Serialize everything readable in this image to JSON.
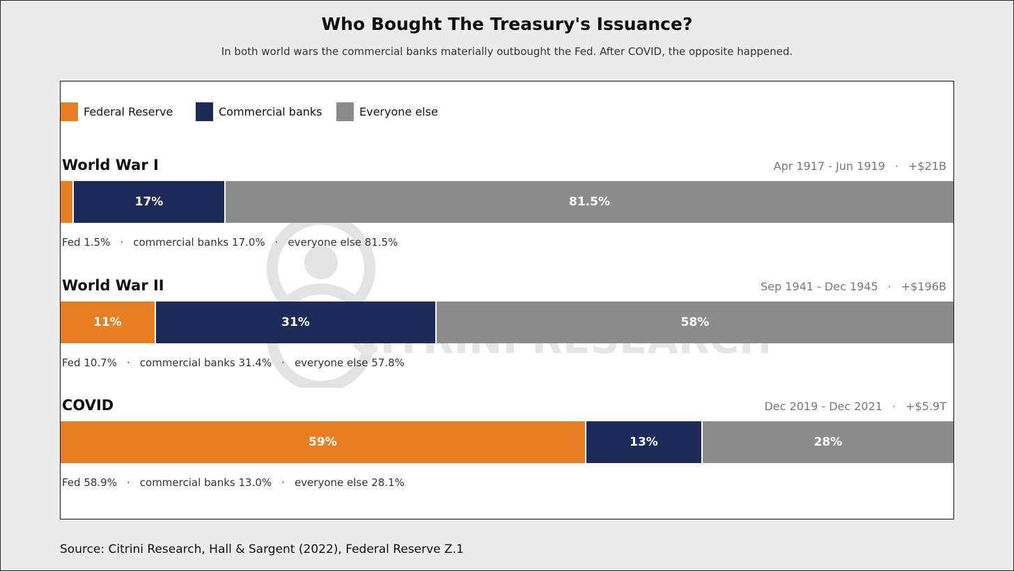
{
  "title": "Who Bought The Treasury's Issuance?",
  "subtitle": "In both world wars the commercial banks materially outbought the Fed. After COVID, the opposite happened.",
  "source": "Source: Citrini Research, Hall & Sargent (2022), Federal Reserve Z.1",
  "watermark": {
    "text": "CITRINI RESEARCH",
    "color": "#e0e0e0"
  },
  "colors": {
    "fed": "#e67e22",
    "banks": "#1c2b57",
    "others": "#8c8c8c"
  },
  "legend": [
    {
      "label": "Federal Reserve",
      "color": "#e67e22"
    },
    {
      "label": "Commercial banks",
      "color": "#1c2b57"
    },
    {
      "label": "Everyone else",
      "color": "#8c8c8c"
    }
  ],
  "sections": [
    {
      "title": "World War I",
      "period": "Apr 1917 - Jun 1919",
      "total": "+$21B",
      "sep": "·",
      "detail": [
        "Fed 1.5%",
        "commercial banks 17.0%",
        "everyone else 81.5%"
      ]
    },
    {
      "title": "World War II",
      "period": "Sep 1941 - Dec 1945",
      "total": "+$196B",
      "sep": "·",
      "detail": [
        "Fed 10.7%",
        "commercial banks 31.4%",
        "everyone else 57.8%"
      ]
    },
    {
      "title": "COVID",
      "period": "Dec 2019 - Dec 2021",
      "total": "+$5.9T",
      "sep": "·",
      "detail": [
        "Fed 58.9%",
        "commercial banks 13.0%",
        "everyone else 28.1%"
      ]
    }
  ],
  "chart_data": {
    "type": "bar",
    "stacked": true,
    "orientation": "horizontal",
    "normalized": true,
    "title": "Who Bought The Treasury's Issuance?",
    "categories": [
      "World War I",
      "World War II",
      "COVID"
    ],
    "series": [
      {
        "name": "Federal Reserve",
        "values": [
          1.5,
          10.7,
          58.9
        ],
        "labels": [
          "",
          "11%",
          "59%"
        ]
      },
      {
        "name": "Commercial banks",
        "values": [
          17.0,
          31.4,
          13.0
        ],
        "labels": [
          "17%",
          "31%",
          "13%"
        ]
      },
      {
        "name": "Everyone else",
        "values": [
          81.5,
          57.8,
          28.1
        ],
        "labels": [
          "81.5%",
          "58%",
          "28%"
        ]
      }
    ],
    "xlim": [
      0,
      100
    ],
    "legend": "top-left",
    "grid": false
  }
}
